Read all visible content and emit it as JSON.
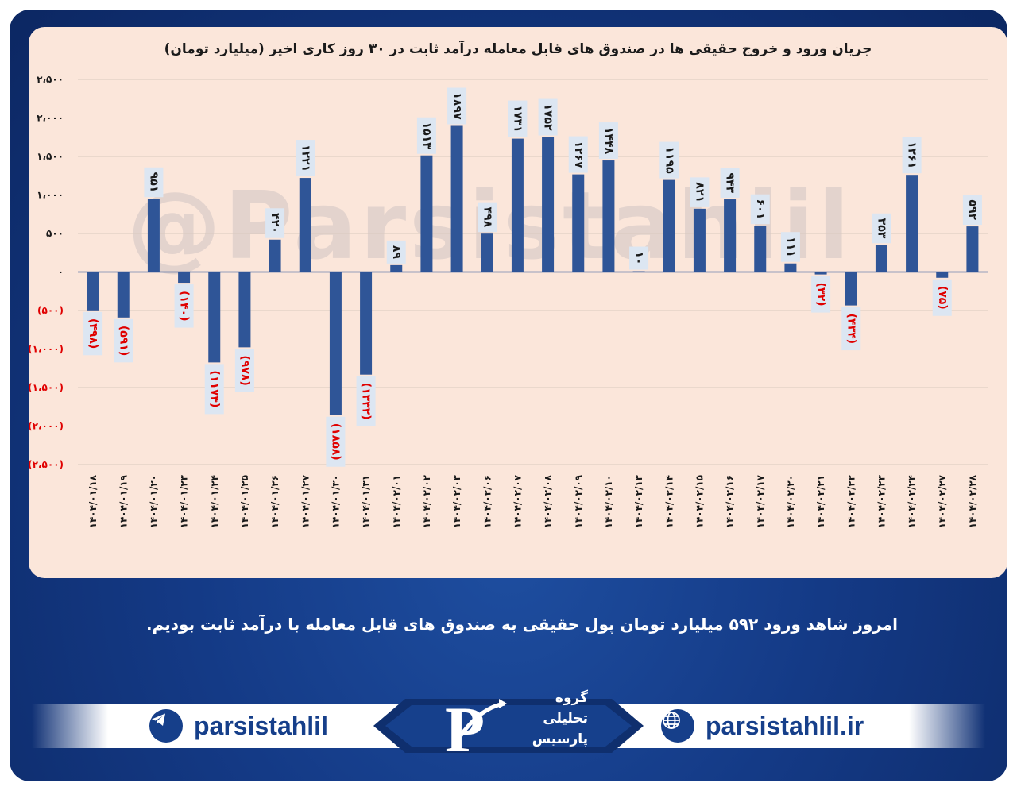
{
  "chart_data": {
    "type": "bar",
    "title": "جریان ورود و خروج حقیقی ها در صندوق های قابل معامله درآمد ثابت در ۳۰ روز کاری اخیر (میلیارد تومان)",
    "ylim": [
      -2500,
      2500
    ],
    "yticks": [
      2500,
      2000,
      1500,
      1000,
      500,
      0,
      -500,
      -1000,
      -1500,
      -2000,
      -2500
    ],
    "ytick_labels": [
      "۲،۵۰۰",
      "۲،۰۰۰",
      "۱،۵۰۰",
      "۱،۰۰۰",
      "۵۰۰",
      "۰",
      "(۵۰۰)",
      "(۱،۰۰۰)",
      "(۱،۵۰۰)",
      "(۲،۰۰۰)",
      "(۲،۵۰۰)"
    ],
    "grid": true,
    "categories": [
      "۱۴۰۴/۰۱/۱۸",
      "۱۴۰۴/۰۱/۱۹",
      "۱۴۰۴/۰۱/۲۰",
      "۱۴۰۴/۰۱/۲۳",
      "۱۴۰۴/۰۱/۲۴",
      "۱۴۰۴/۰۱/۲۵",
      "۱۴۰۴/۰۱/۲۶",
      "۱۴۰۴/۰۱/۲۷",
      "۱۴۰۴/۰۱/۳۰",
      "۱۴۰۴/۰۱/۳۱",
      "۱۴۰۴/۰۲/۰۱",
      "۱۴۰۴/۰۲/۰۲",
      "۱۴۰۴/۰۲/۰۳",
      "۱۴۰۴/۰۲/۰۶",
      "۱۴۰۴/۰۲/۰۷",
      "۱۴۰۴/۰۲/۰۸",
      "۱۴۰۴/۰۲/۰۹",
      "۱۴۰۴/۰۲/۱۰",
      "۱۴۰۴/۰۲/۱۳",
      "۱۴۰۴/۰۲/۱۴",
      "۱۴۰۴/۰۲/۱۵",
      "۱۴۰۴/۰۲/۱۶",
      "۱۴۰۴/۰۲/۱۷",
      "۱۴۰۴/۰۲/۲۰",
      "۱۴۰۴/۰۲/۲۱",
      "۱۴۰۴/۰۲/۲۲",
      "۱۴۰۴/۰۲/۲۳",
      "۱۴۰۴/۰۲/۲۴",
      "۱۴۰۴/۰۲/۲۷",
      "۱۴۰۴/۰۲/۲۸"
    ],
    "values": [
      -498,
      -591,
      951,
      -140,
      -1174,
      -978,
      420,
      1221,
      -1858,
      -1332,
      89,
      1513,
      1897,
      498,
      1731,
      1752,
      1267,
      1448,
      10,
      1195,
      821,
      943,
      601,
      111,
      -32,
      -434,
      353,
      1261,
      -75,
      592
    ],
    "value_labels": [
      "(۴۹۸)",
      "(۵۹۱)",
      "۹۵۱",
      "(۱۴۰)",
      "(۱۱۷۴)",
      "(۹۷۸)",
      "۴۲۰",
      "۱۲۲۱",
      "(۱۸۵۸)",
      "(۱۳۳۲)",
      "۸۹",
      "۱۵۱۳",
      "۱۸۹۷",
      "۴۹۸",
      "۱۷۳۱",
      "۱۷۵۲",
      "۱۲۶۷",
      "۱۴۴۸",
      "۱۰",
      "۱۱۹۵",
      "۸۲۱",
      "۹۴۳",
      "۶۰۱",
      "۱۱۱",
      "(۳۲)",
      "(۴۳۴)",
      "۳۵۳",
      "۱۲۶۱",
      "(۷۵)",
      "۵۹۲"
    ],
    "colors": {
      "bar": "#2f5597",
      "positive_label": "#1a1a1a",
      "negative_label": "#e00000",
      "label_box": "#dce6f2",
      "grid": "#d9c9bf"
    }
  },
  "watermark": "@Parsistahlil",
  "summary": "امروز شاهد ورود ۵۹۲ میلیارد تومان پول حقیقی به صندوق های قابل معامله با درآمد ثابت بودیم.",
  "footer": {
    "telegram_handle": "parsistahlil",
    "telegram_icon": "telegram-icon",
    "website": "parsistahlil.ir",
    "web_icon": "globe-icon",
    "logo_lines": [
      "گروه",
      "تحلیلی",
      "پارسیس"
    ]
  }
}
